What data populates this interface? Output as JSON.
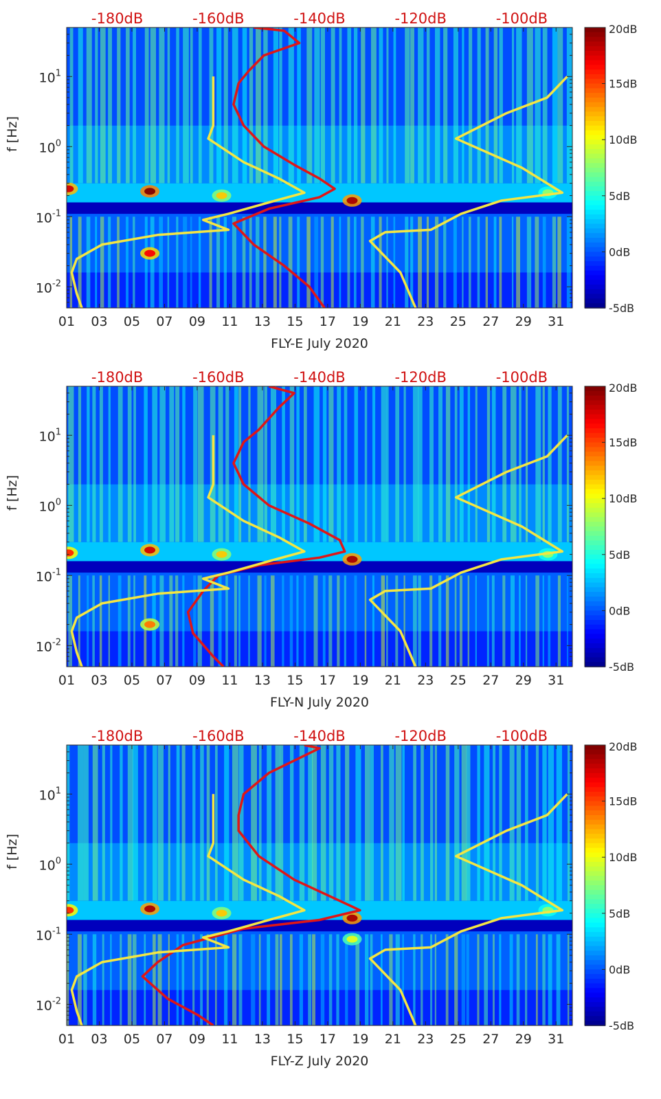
{
  "chart_data": [
    {
      "type": "heatmap",
      "xlabel": "FLY-E July 2020",
      "ylabel": "f [Hz]",
      "x_ticks": [
        "01",
        "03",
        "05",
        "07",
        "09",
        "11",
        "13",
        "15",
        "17",
        "19",
        "21",
        "23",
        "25",
        "27",
        "29",
        "31"
      ],
      "xlim": [
        1,
        32
      ],
      "ylim_hz": [
        0.005,
        50
      ],
      "y_scale": "log",
      "y_ticks": [
        "10^-2",
        "10^-1",
        "10^0",
        "10^1"
      ],
      "top_axis_ticks": [
        "-180dB",
        "-160dB",
        "-140dB",
        "-120dB",
        "-100dB"
      ],
      "top_axis_range_db": [
        -190,
        -90
      ],
      "colorbar": {
        "ticks": [
          "20dB",
          "15dB",
          "10dB",
          "5dB",
          "0dB",
          "-5dB"
        ],
        "range_db": [
          -5,
          20
        ],
        "colormap": "jet"
      },
      "colors": {
        "curve_primary": "#e01616",
        "curve_secondary": "#f5e642",
        "top_axis_text": "#d01010"
      },
      "hotspots": [
        {
          "day": 1.1,
          "f": 0.25,
          "db": 18
        },
        {
          "day": 6.1,
          "f": 0.23,
          "db": 20
        },
        {
          "day": 18.5,
          "f": 0.17,
          "db": 19
        },
        {
          "day": 30.5,
          "f": 0.22,
          "db": 8
        },
        {
          "day": 10.5,
          "f": 0.2,
          "db": 12
        },
        {
          "day": 6.1,
          "f": 0.03,
          "db": 17
        }
      ],
      "series": [
        {
          "points": [
            [
              -153,
              50
            ],
            [
              -147,
              45
            ],
            [
              -144,
              30
            ],
            [
              -151,
              20
            ],
            [
              -154,
              12
            ],
            [
              -156,
              8
            ],
            [
              -157,
              4
            ],
            [
              -155,
              2
            ],
            [
              -151,
              1
            ],
            [
              -145,
              0.55
            ],
            [
              -140,
              0.35
            ],
            [
              -137,
              0.25
            ],
            [
              -140,
              0.19
            ],
            [
              -150,
              0.13
            ],
            [
              -157,
              0.08
            ],
            [
              -153,
              0.04
            ],
            [
              -147,
              0.02
            ],
            [
              -142,
              0.01
            ],
            [
              -139,
              0.005
            ]
          ]
        },
        {
          "points": [
            [
              -161,
              10
            ],
            [
              -161,
              5
            ],
            [
              -161,
              2
            ],
            [
              -162,
              1.3
            ],
            [
              -155,
              0.6
            ],
            [
              -148,
              0.35
            ],
            [
              -143,
              0.22
            ],
            [
              -150,
              0.16
            ],
            [
              -158,
              0.11
            ],
            [
              -163,
              0.09
            ],
            [
              -158,
              0.065
            ],
            [
              -172,
              0.055
            ],
            [
              -183,
              0.04
            ],
            [
              -188,
              0.025
            ],
            [
              -189,
              0.016
            ],
            [
              -188,
              0.008
            ],
            [
              -187,
              0.005
            ]
          ]
        },
        {
          "points": [
            [
              -91,
              10
            ],
            [
              -95,
              5
            ],
            [
              -103,
              3
            ],
            [
              -113,
              1.3
            ],
            [
              -100,
              0.5
            ],
            [
              -92,
              0.22
            ],
            [
              -104,
              0.17
            ],
            [
              -112,
              0.11
            ],
            [
              -118,
              0.065
            ],
            [
              -127,
              0.06
            ],
            [
              -130,
              0.045
            ],
            [
              -124,
              0.016
            ],
            [
              -121,
              0.005
            ]
          ]
        }
      ]
    },
    {
      "type": "heatmap",
      "xlabel": "FLY-N July 2020",
      "ylabel": "f [Hz]",
      "x_ticks": [
        "01",
        "03",
        "05",
        "07",
        "09",
        "11",
        "13",
        "15",
        "17",
        "19",
        "21",
        "23",
        "25",
        "27",
        "29",
        "31"
      ],
      "xlim": [
        1,
        32
      ],
      "ylim_hz": [
        0.005,
        50
      ],
      "y_scale": "log",
      "y_ticks": [
        "10^-2",
        "10^-1",
        "10^0",
        "10^1"
      ],
      "top_axis_ticks": [
        "-180dB",
        "-160dB",
        "-140dB",
        "-120dB",
        "-100dB"
      ],
      "top_axis_range_db": [
        -190,
        -90
      ],
      "colorbar": {
        "ticks": [
          "20dB",
          "15dB",
          "10dB",
          "5dB",
          "0dB",
          "-5dB"
        ],
        "range_db": [
          -5,
          20
        ],
        "colormap": "jet"
      },
      "colors": {
        "curve_primary": "#e01616",
        "curve_secondary": "#f5e642",
        "top_axis_text": "#d01010"
      },
      "hotspots": [
        {
          "day": 1.1,
          "f": 0.21,
          "db": 16
        },
        {
          "day": 6.1,
          "f": 0.23,
          "db": 18
        },
        {
          "day": 18.5,
          "f": 0.17,
          "db": 19
        },
        {
          "day": 30.5,
          "f": 0.2,
          "db": 8
        },
        {
          "day": 10.5,
          "f": 0.2,
          "db": 12
        },
        {
          "day": 6.1,
          "f": 0.02,
          "db": 14
        }
      ],
      "series": [
        {
          "points": [
            [
              -150,
              50
            ],
            [
              -145,
              40
            ],
            [
              -148,
              25
            ],
            [
              -152,
              12
            ],
            [
              -155,
              8
            ],
            [
              -157,
              4
            ],
            [
              -155,
              2
            ],
            [
              -150,
              1
            ],
            [
              -142,
              0.55
            ],
            [
              -136,
              0.32
            ],
            [
              -135,
              0.22
            ],
            [
              -140,
              0.18
            ],
            [
              -152,
              0.14
            ],
            [
              -160,
              0.1
            ],
            [
              -163,
              0.06
            ],
            [
              -166,
              0.03
            ],
            [
              -165,
              0.015
            ],
            [
              -161,
              0.007
            ],
            [
              -159,
              0.005
            ]
          ]
        },
        {
          "points": [
            [
              -161,
              10
            ],
            [
              -161,
              5
            ],
            [
              -161,
              2
            ],
            [
              -162,
              1.3
            ],
            [
              -155,
              0.6
            ],
            [
              -148,
              0.35
            ],
            [
              -143,
              0.22
            ],
            [
              -150,
              0.16
            ],
            [
              -158,
              0.11
            ],
            [
              -163,
              0.09
            ],
            [
              -158,
              0.065
            ],
            [
              -172,
              0.055
            ],
            [
              -183,
              0.04
            ],
            [
              -188,
              0.025
            ],
            [
              -189,
              0.016
            ],
            [
              -188,
              0.008
            ],
            [
              -187,
              0.005
            ]
          ]
        },
        {
          "points": [
            [
              -91,
              10
            ],
            [
              -95,
              5
            ],
            [
              -103,
              3
            ],
            [
              -113,
              1.3
            ],
            [
              -100,
              0.5
            ],
            [
              -92,
              0.22
            ],
            [
              -104,
              0.17
            ],
            [
              -112,
              0.11
            ],
            [
              -118,
              0.065
            ],
            [
              -127,
              0.06
            ],
            [
              -130,
              0.045
            ],
            [
              -124,
              0.016
            ],
            [
              -121,
              0.005
            ]
          ]
        }
      ]
    },
    {
      "type": "heatmap",
      "xlabel": "FLY-Z July 2020",
      "ylabel": "f [Hz]",
      "x_ticks": [
        "01",
        "03",
        "05",
        "07",
        "09",
        "11",
        "13",
        "15",
        "17",
        "19",
        "21",
        "23",
        "25",
        "27",
        "29",
        "31"
      ],
      "xlim": [
        1,
        32
      ],
      "ylim_hz": [
        0.005,
        50
      ],
      "y_scale": "log",
      "y_ticks": [
        "10^-2",
        "10^-1",
        "10^0",
        "10^1"
      ],
      "top_axis_ticks": [
        "-180dB",
        "-160dB",
        "-140dB",
        "-120dB",
        "-100dB"
      ],
      "top_axis_range_db": [
        -190,
        -90
      ],
      "colorbar": {
        "ticks": [
          "20dB",
          "15dB",
          "10dB",
          "5dB",
          "0dB",
          "-5dB"
        ],
        "range_db": [
          -5,
          20
        ],
        "colormap": "jet"
      },
      "colors": {
        "curve_primary": "#e01616",
        "curve_secondary": "#f5e642",
        "top_axis_text": "#d01010"
      },
      "hotspots": [
        {
          "day": 1.1,
          "f": 0.22,
          "db": 16
        },
        {
          "day": 6.1,
          "f": 0.23,
          "db": 19
        },
        {
          "day": 18.5,
          "f": 0.17,
          "db": 19
        },
        {
          "day": 30.5,
          "f": 0.22,
          "db": 8
        },
        {
          "day": 10.5,
          "f": 0.2,
          "db": 12
        },
        {
          "day": 18.5,
          "f": 0.085,
          "db": 10
        }
      ],
      "series": [
        {
          "points": [
            [
              -143,
              50
            ],
            [
              -140,
              45
            ],
            [
              -150,
              20
            ],
            [
              -155,
              10
            ],
            [
              -156,
              5
            ],
            [
              -156,
              3
            ],
            [
              -152,
              1.3
            ],
            [
              -145,
              0.6
            ],
            [
              -138,
              0.35
            ],
            [
              -132,
              0.22
            ],
            [
              -140,
              0.16
            ],
            [
              -155,
              0.12
            ],
            [
              -167,
              0.07
            ],
            [
              -172,
              0.04
            ],
            [
              -175,
              0.025
            ],
            [
              -170,
              0.012
            ],
            [
              -164,
              0.007
            ],
            [
              -161,
              0.005
            ]
          ]
        },
        {
          "points": [
            [
              -161,
              10
            ],
            [
              -161,
              5
            ],
            [
              -161,
              2
            ],
            [
              -162,
              1.3
            ],
            [
              -155,
              0.6
            ],
            [
              -148,
              0.35
            ],
            [
              -143,
              0.22
            ],
            [
              -150,
              0.16
            ],
            [
              -158,
              0.11
            ],
            [
              -163,
              0.09
            ],
            [
              -158,
              0.065
            ],
            [
              -172,
              0.055
            ],
            [
              -183,
              0.04
            ],
            [
              -188,
              0.025
            ],
            [
              -189,
              0.016
            ],
            [
              -188,
              0.008
            ],
            [
              -187,
              0.005
            ]
          ]
        },
        {
          "points": [
            [
              -91,
              10
            ],
            [
              -95,
              5
            ],
            [
              -103,
              3
            ],
            [
              -113,
              1.3
            ],
            [
              -100,
              0.5
            ],
            [
              -92,
              0.22
            ],
            [
              -104,
              0.17
            ],
            [
              -112,
              0.11
            ],
            [
              -118,
              0.065
            ],
            [
              -127,
              0.06
            ],
            [
              -130,
              0.045
            ],
            [
              -124,
              0.016
            ],
            [
              -121,
              0.005
            ]
          ]
        }
      ]
    }
  ]
}
